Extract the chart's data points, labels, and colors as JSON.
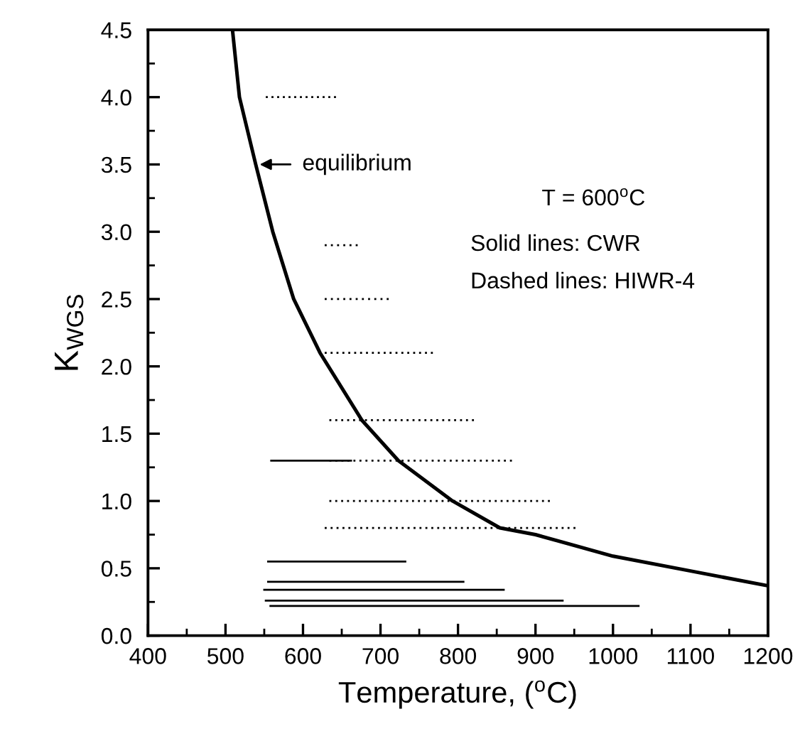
{
  "chart_data": {
    "type": "line",
    "xlabel": "Temperature, ($^{o}$C)",
    "ylabel": "K$_{WGS}$",
    "xlim": [
      400,
      1200
    ],
    "ylim": [
      0,
      4.5
    ],
    "xticks": [
      400,
      500,
      600,
      700,
      800,
      900,
      1000,
      1100,
      1200
    ],
    "yticks": [
      {
        "value": 0,
        "label": "0.0"
      },
      0.5,
      {
        "value": 1,
        "label": "1.0"
      },
      1.5,
      {
        "value": 2,
        "label": "2.0"
      },
      2.5,
      {
        "value": 3,
        "label": "3.0"
      },
      3.5,
      {
        "value": 4,
        "label": "4.0"
      },
      4.5
    ],
    "grid": false,
    "marker": "none",
    "annotations": [
      {
        "text": "equilibrium",
        "x": 539,
        "y": 3.5
      },
      "T = 600$^{o}$C",
      "Solid lines: CWR",
      "Dashed lines: HIWR-4"
    ],
    "series": [
      {
        "color": "#000000",
        "line_style": "solid",
        "x": [
          509,
          518,
          539,
          561,
          588,
          622,
          676,
          723,
          793,
          854,
          900,
          1000,
          1100,
          1200
        ],
        "values": [
          4.5,
          4.0,
          3.5,
          3.0,
          2.5,
          2.1,
          1.6,
          1.3,
          1.0,
          0.8,
          0.75,
          0.59,
          0.48,
          0.37
        ]
      },
      {
        "color": "#000000",
        "line_style": "dotted",
        "x": [
          552,
          640
        ],
        "values": [
          4.0,
          4.0
        ]
      },
      {
        "color": "#000000",
        "line_style": "dotted",
        "x": [
          628,
          668
        ],
        "values": [
          2.9,
          2.9
        ]
      },
      {
        "color": "#000000",
        "line_style": "dotted",
        "x": [
          628,
          708
        ],
        "values": [
          2.5,
          2.5
        ]
      },
      {
        "color": "#000000",
        "line_style": "dotted",
        "x": [
          628,
          765
        ],
        "values": [
          2.1,
          2.1
        ]
      },
      {
        "color": "#000000",
        "line_style": "dotted",
        "x": [
          634,
          818
        ],
        "values": [
          1.6,
          1.6
        ]
      },
      {
        "color": "#000000",
        "line_style": "dotted",
        "x": [
          634,
          867
        ],
        "values": [
          1.3,
          1.3
        ]
      },
      {
        "color": "#000000",
        "line_style": "dotted",
        "x": [
          634,
          916
        ],
        "values": [
          1.0,
          1.0
        ]
      },
      {
        "color": "#000000",
        "line_style": "dotted",
        "x": [
          628,
          949
        ],
        "values": [
          0.8,
          0.8
        ]
      },
      {
        "color": "#000000",
        "line_style": "solid",
        "x": [
          559,
          662
        ],
        "values": [
          1.3,
          1.3
        ]
      },
      {
        "color": "#000000",
        "line_style": "solid",
        "x": [
          555,
          732
        ],
        "values": [
          0.55,
          0.55
        ]
      },
      {
        "color": "#000000",
        "line_style": "solid",
        "x": [
          555,
          807
        ],
        "values": [
          0.4,
          0.4
        ]
      },
      {
        "color": "#000000",
        "line_style": "solid",
        "x": [
          550,
          859
        ],
        "values": [
          0.34,
          0.34
        ]
      },
      {
        "color": "#000000",
        "line_style": "solid",
        "x": [
          552,
          935
        ],
        "values": [
          0.26,
          0.26
        ]
      },
      {
        "color": "#000000",
        "line_style": "solid",
        "x": [
          558,
          1033
        ],
        "values": [
          0.22,
          0.22
        ]
      }
    ]
  }
}
